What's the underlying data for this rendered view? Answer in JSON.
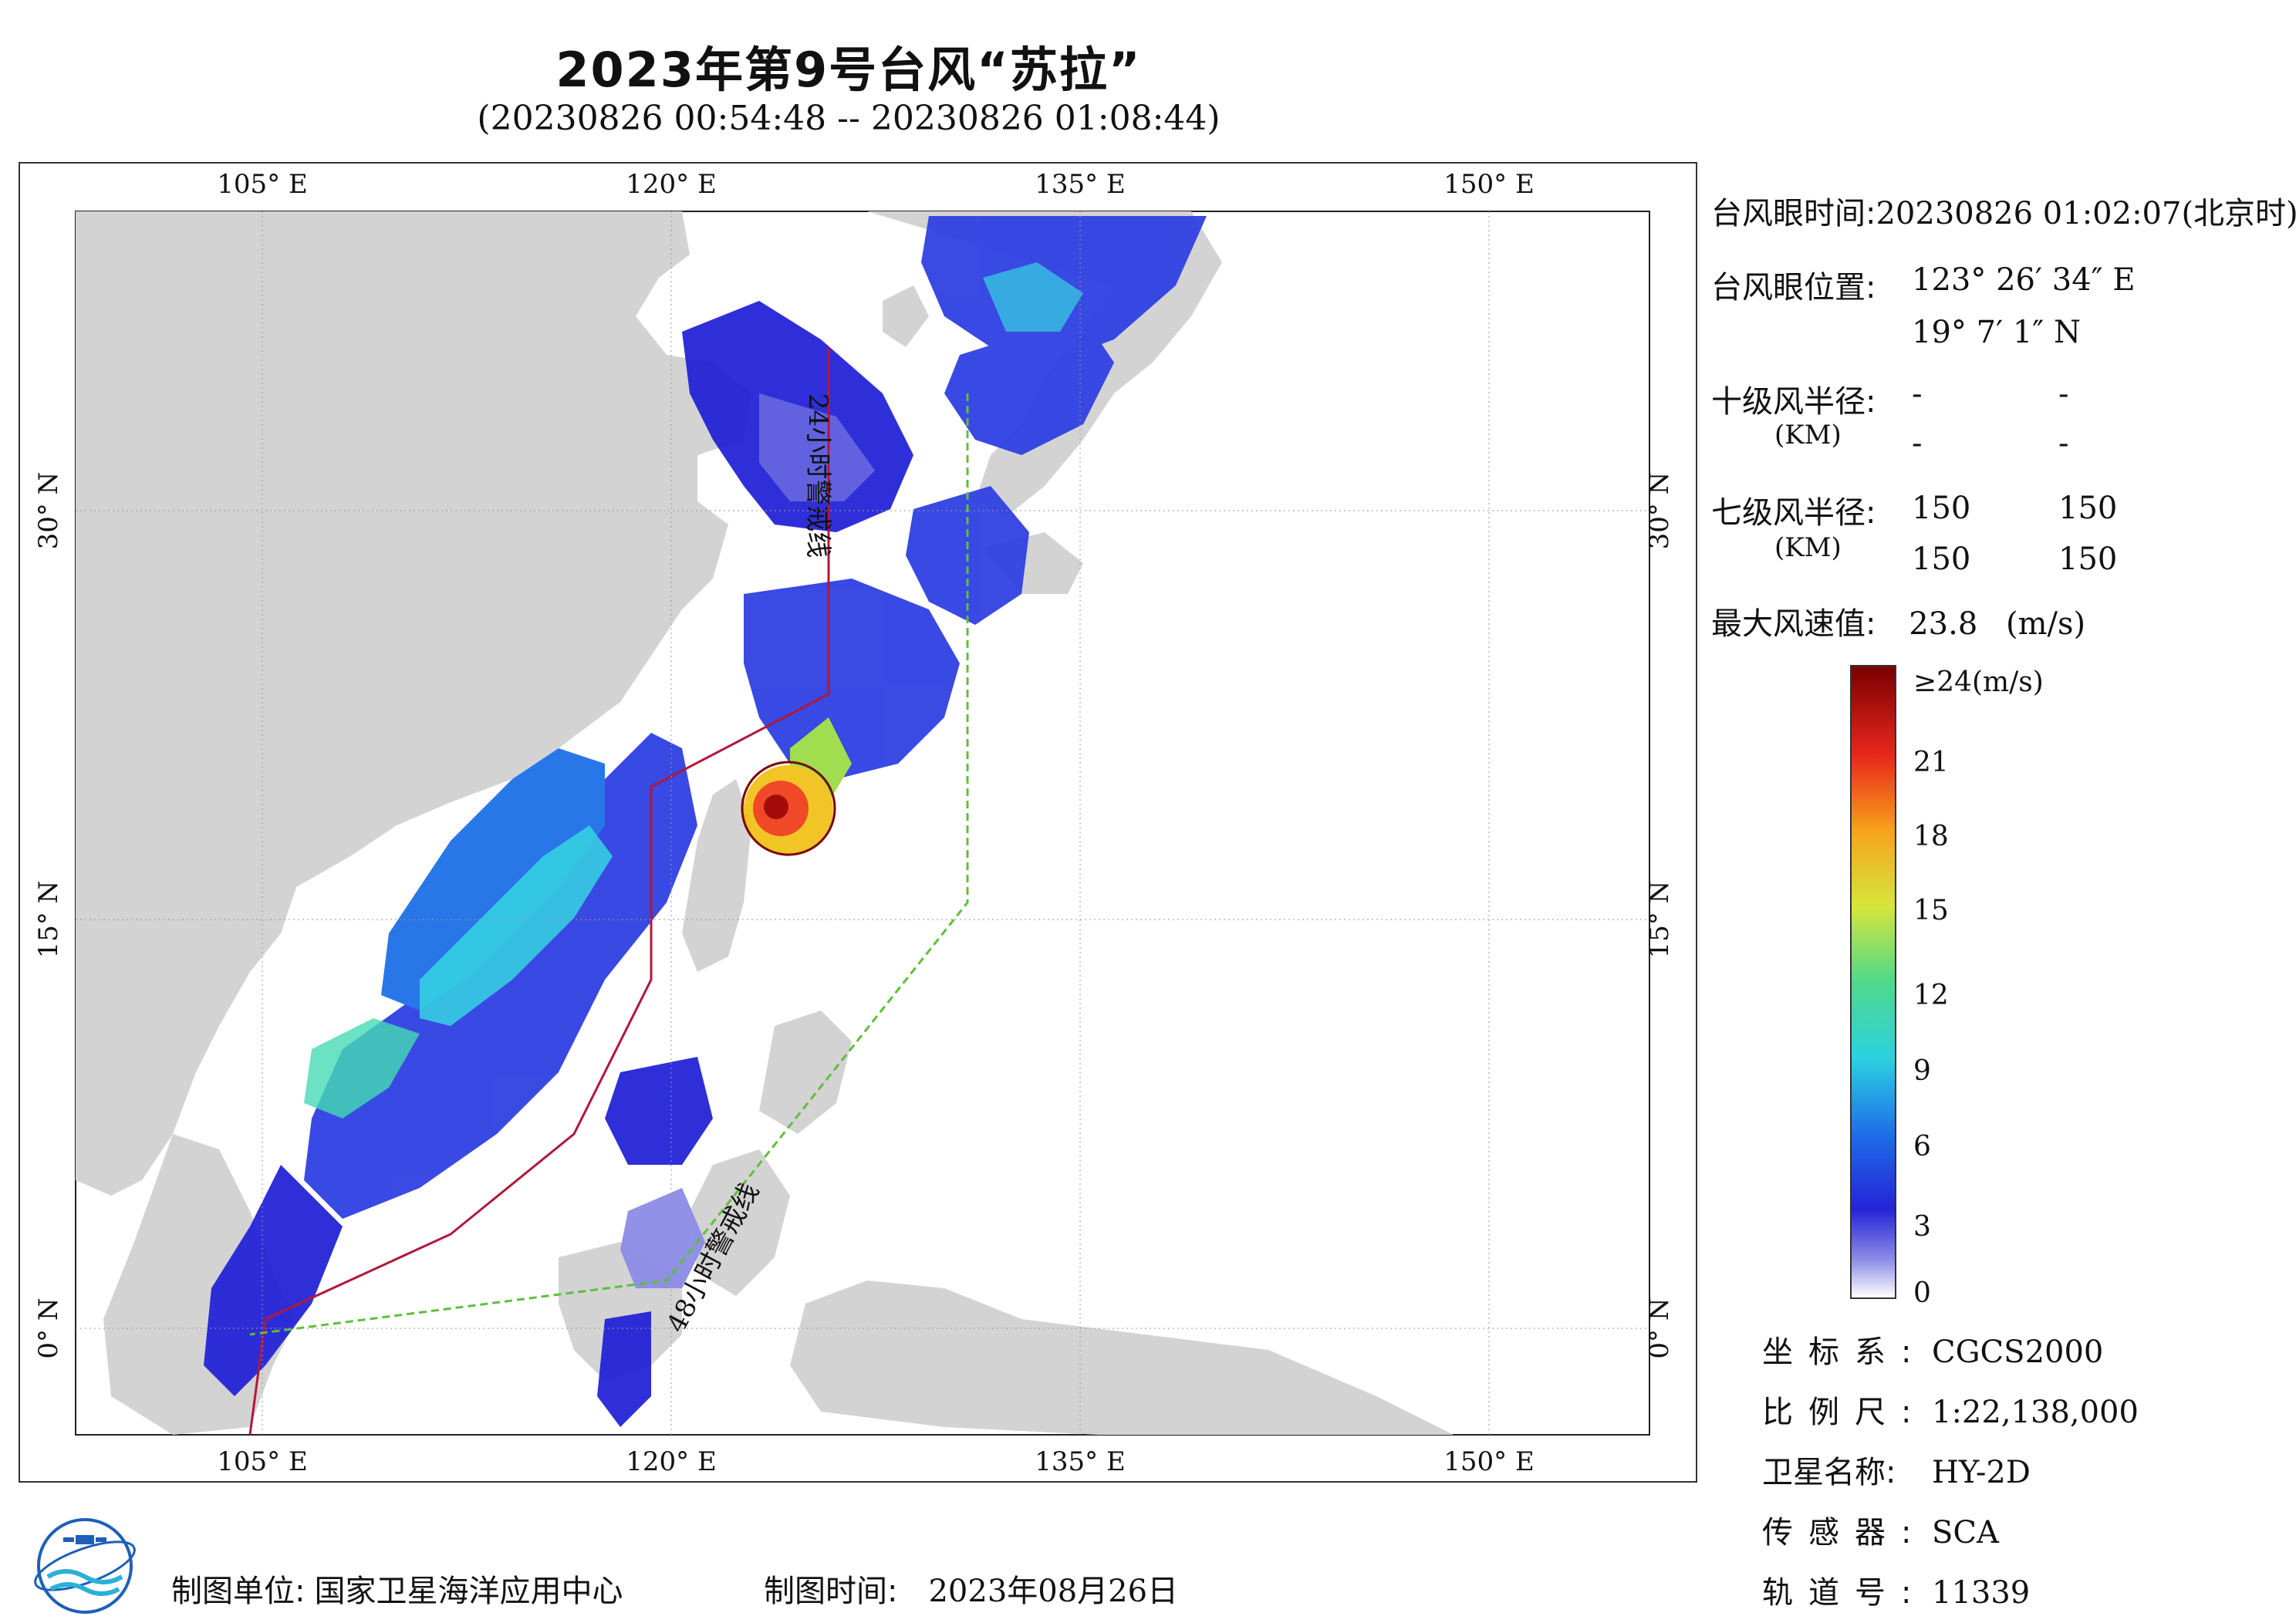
{
  "title": "2023年第9号台风“苏拉”",
  "subtitle": "(20230826 00:54:48 -- 20230826 01:08:44)",
  "map": {
    "lon_ticks": [
      "105° E",
      "120° E",
      "135° E",
      "150° E"
    ],
    "lat_ticks": [
      "30° N",
      "15° N",
      "0° N"
    ],
    "line_24h": "24小时警戒线",
    "line_48h": "48小时警戒线",
    "colors": {
      "land": "#d3d3d3",
      "sea": "#ffffff",
      "wind_low": "#2a2bd9",
      "wind_mid": "#31d0cf",
      "wind_high": "#d40000",
      "line_24h": "#b0183a",
      "line_48h": "#5fbf3a"
    }
  },
  "info": {
    "eye_time_label": "台风眼时间:",
    "eye_time_value": "20230826 01:02:07(北京时)",
    "eye_pos_label": "台风眼位置:",
    "eye_lon": "123° 26′ 34″ E",
    "eye_lat": "19° 7′ 1″ N",
    "r10_label": "十级风半径:",
    "r10_unit": "(KM)",
    "r10_values": [
      "-",
      "-",
      "-",
      "-"
    ],
    "r7_label": "七级风半径:",
    "r7_unit": "(KM)",
    "r7_values": [
      "150",
      "150",
      "150",
      "150"
    ],
    "max_wind_label": "最大风速值:",
    "max_wind_value": "23.8",
    "max_wind_unit": "(m/s)"
  },
  "legend": {
    "top_label": "≥24(m/s)",
    "ticks": [
      "21",
      "18",
      "15",
      "12",
      "9",
      "6",
      "3",
      "0"
    ]
  },
  "meta": {
    "coord_label": "坐标系:",
    "coord_value": "CGCS2000",
    "scale_label": "比例尺:",
    "scale_value": "1:22,138,000",
    "sat_label": "卫星名称:",
    "sat_value": "HY-2D",
    "sensor_label": "传感器:",
    "sensor_value": "SCA",
    "orbit_label": "轨道号:",
    "orbit_value": "11339"
  },
  "footer": {
    "unit_label": "制图单位:",
    "unit_value": "国家卫星海洋应用中心",
    "time_label": "制图时间:",
    "time_value": "2023年08月26日"
  }
}
